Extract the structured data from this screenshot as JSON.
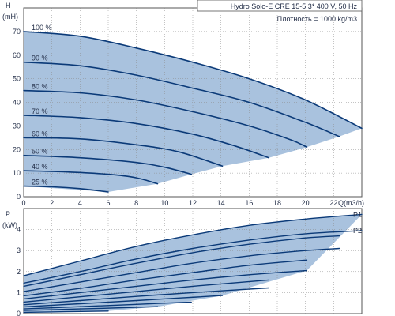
{
  "chart_data": [
    {
      "type": "line",
      "title": "Hydro Solo-E CRE 15-5",
      "info_lines": [
        "Hydro Solo-E CRE 15-5    3* 400 V, 50 Hz",
        "Плотность = 1000 kg/m3"
      ],
      "ylabel": [
        "H",
        "(mH)"
      ],
      "xlabel": "Q(m3/h)",
      "xlim": [
        0,
        24
      ],
      "ylim": [
        0,
        80
      ],
      "xticks": [
        "0",
        "2",
        "4",
        "6",
        "8",
        "10",
        "12",
        "14",
        "16",
        "18",
        "20",
        "22"
      ],
      "yticks": [
        "0",
        "10",
        "20",
        "30",
        "40",
        "50",
        "60",
        "70"
      ],
      "grid": true,
      "series": [
        {
          "name": "100 %",
          "x": [
            0,
            4,
            8,
            12,
            16,
            20,
            24
          ],
          "y": [
            70,
            68,
            63,
            57,
            50,
            41,
            29
          ]
        },
        {
          "name": "90 %",
          "x": [
            0,
            4,
            8,
            12,
            16,
            20,
            22.4
          ],
          "y": [
            57,
            55.5,
            51.5,
            46,
            40,
            31.5,
            25.5
          ]
        },
        {
          "name": "80 %",
          "x": [
            0,
            4,
            8,
            12,
            16,
            19,
            20.1
          ],
          "y": [
            45,
            44,
            41,
            36,
            30,
            24,
            21
          ]
        },
        {
          "name": "70 %",
          "x": [
            0,
            4,
            8,
            12,
            15,
            17.4
          ],
          "y": [
            34.5,
            33.5,
            31,
            26.5,
            21.5,
            16.5
          ]
        },
        {
          "name": "60 %",
          "x": [
            0,
            4,
            8,
            11,
            14.1
          ],
          "y": [
            25,
            24.5,
            22,
            19,
            13
          ]
        },
        {
          "name": "50 %",
          "x": [
            0,
            4,
            8,
            10,
            11.9
          ],
          "y": [
            17.5,
            16.5,
            14.5,
            12.5,
            9.5
          ]
        },
        {
          "name": "40 %",
          "x": [
            0,
            3,
            6,
            8,
            9.5
          ],
          "y": [
            11,
            10.5,
            9.5,
            8,
            5.5
          ]
        },
        {
          "name": "25 %",
          "x": [
            0,
            2,
            4,
            6
          ],
          "y": [
            4.5,
            4.2,
            3.4,
            2
          ]
        }
      ],
      "region": {
        "x": [
          0,
          4,
          8,
          12,
          16,
          20,
          24,
          22.4,
          20.1,
          17.4,
          14.1,
          11.9,
          9.5,
          6,
          0
        ],
        "y": [
          70,
          68,
          63,
          57,
          50,
          41,
          29,
          25.5,
          21,
          16.5,
          13,
          9.5,
          5.5,
          2,
          4.5
        ]
      },
      "colors": {
        "line": "#0b3a78",
        "fill": "#a9c2de",
        "grid": "#8a8a8a"
      }
    },
    {
      "type": "line",
      "ylabel": [
        "P",
        "(kW)"
      ],
      "xlim": [
        0,
        24
      ],
      "ylim": [
        0,
        5
      ],
      "yticks": [
        "0",
        "1",
        "2",
        "3",
        "4"
      ],
      "grid": true,
      "labels": [
        "P1",
        "P2"
      ],
      "series": [
        {
          "name": "P1",
          "x": [
            0,
            4,
            8,
            12,
            16,
            20,
            24
          ],
          "y": [
            1.8,
            2.5,
            3.2,
            3.75,
            4.2,
            4.5,
            4.72
          ]
        },
        {
          "name": "P2",
          "x": [
            0,
            4,
            8,
            12,
            16,
            20,
            24
          ],
          "y": [
            1.45,
            2.0,
            2.6,
            3.1,
            3.5,
            3.8,
            3.95
          ]
        },
        {
          "x": [
            0,
            4,
            8,
            12,
            16,
            20,
            22.4
          ],
          "y": [
            1.3,
            1.85,
            2.4,
            2.9,
            3.3,
            3.6,
            3.7
          ]
        },
        {
          "x": [
            0,
            4,
            8,
            12,
            16,
            20,
            22.4
          ],
          "y": [
            1.05,
            1.5,
            1.95,
            2.4,
            2.75,
            3.0,
            3.1
          ]
        },
        {
          "x": [
            0,
            4,
            8,
            12,
            16,
            20.1
          ],
          "y": [
            0.85,
            1.2,
            1.6,
            1.95,
            2.3,
            2.55
          ]
        },
        {
          "x": [
            0,
            4,
            8,
            12,
            16,
            20.1
          ],
          "y": [
            0.7,
            1.0,
            1.3,
            1.6,
            1.85,
            2.05
          ]
        },
        {
          "x": [
            0,
            4,
            8,
            12,
            17.4
          ],
          "y": [
            0.55,
            0.8,
            1.05,
            1.3,
            1.6
          ]
        },
        {
          "x": [
            0,
            4,
            8,
            12,
            17.4
          ],
          "y": [
            0.42,
            0.62,
            0.82,
            1.0,
            1.22
          ]
        },
        {
          "x": [
            0,
            4,
            8,
            11,
            14.1
          ],
          "y": [
            0.32,
            0.47,
            0.62,
            0.74,
            0.86
          ]
        },
        {
          "x": [
            0,
            4,
            8,
            11.9
          ],
          "y": [
            0.22,
            0.33,
            0.44,
            0.55
          ]
        },
        {
          "x": [
            0,
            4,
            8,
            9.5
          ],
          "y": [
            0.15,
            0.22,
            0.3,
            0.33
          ]
        },
        {
          "x": [
            0,
            3,
            6
          ],
          "y": [
            0.06,
            0.09,
            0.12
          ]
        }
      ],
      "region": {
        "x": [
          0,
          4,
          8,
          12,
          16,
          20,
          24,
          20.1,
          14.1,
          9.5,
          6,
          0
        ],
        "y": [
          1.8,
          2.5,
          3.2,
          3.75,
          4.2,
          4.5,
          4.72,
          2.05,
          0.86,
          0.33,
          0.12,
          0.06
        ]
      },
      "colors": {
        "line": "#0b3a78",
        "fill": "#a9c2de",
        "grid": "#8a8a8a"
      }
    }
  ]
}
